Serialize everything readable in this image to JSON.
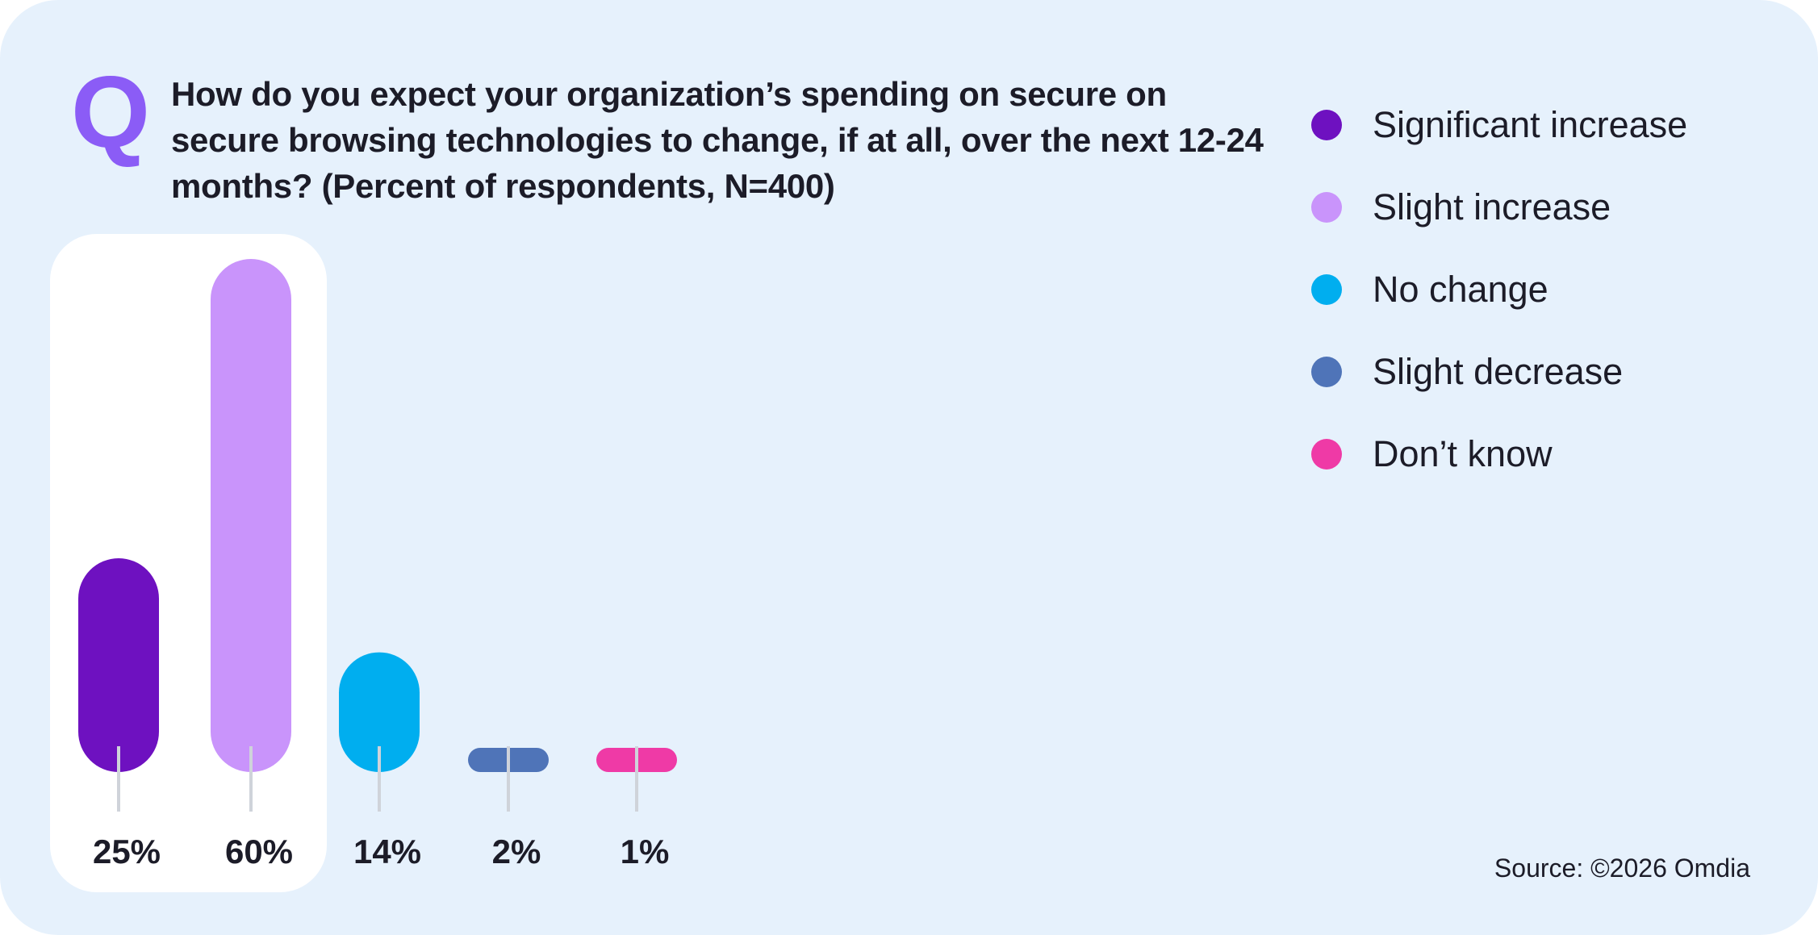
{
  "question": {
    "mark": "Q",
    "text": "How do you expect your organization’s spending on secure on secure browsing technologies to change, if at all, over the next 12-24 months? (Percent of respondents, N=400)"
  },
  "chart_data": {
    "type": "bar",
    "title": "How do you expect your organization’s spending on secure on secure browsing technologies to change, if at all, over the next 12-24 months? (Percent of respondents, N=400)",
    "categories": [
      "Significant increase",
      "Slight increase",
      "No change",
      "Slight decrease",
      "Don’t know"
    ],
    "values": [
      25,
      60,
      14,
      2,
      1
    ],
    "value_labels": [
      "25%",
      "60%",
      "14%",
      "2%",
      "1%"
    ],
    "colors": [
      "#6e11c0",
      "#c994fb",
      "#00aeef",
      "#4f74b8",
      "#ef3aa6"
    ],
    "ylim": [
      0,
      60
    ],
    "unit": "%",
    "grid": false,
    "legend_position": "right",
    "highlighted_categories": [
      "Significant increase",
      "Slight increase"
    ]
  },
  "legend": {
    "items": [
      {
        "label": "Significant increase",
        "color": "#6e11c0"
      },
      {
        "label": "Slight increase",
        "color": "#c994fb"
      },
      {
        "label": "No change",
        "color": "#00aeef"
      },
      {
        "label": "Slight decrease",
        "color": "#4f74b8"
      },
      {
        "label": "Don’t know",
        "color": "#ef3aa6"
      }
    ]
  },
  "source": "Source: ©2026 Omdia"
}
